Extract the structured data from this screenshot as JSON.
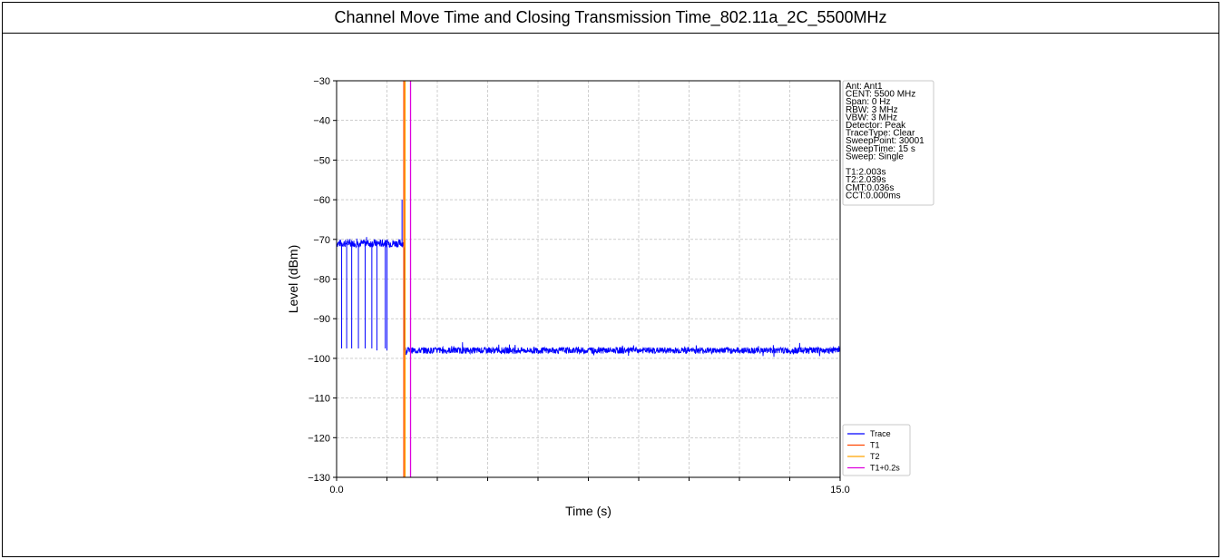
{
  "chart_data": {
    "type": "line",
    "title": "Channel Move Time and Closing Transmission Time_802.11a_2C_5500MHz",
    "xlabel": "Time (s)",
    "ylabel": "Level (dBm)",
    "xlim": [
      0,
      15
    ],
    "ylim": [
      -130,
      -30
    ],
    "x_ticks": [
      "0.0",
      "15.0"
    ],
    "y_ticks": [
      "-30",
      "-40",
      "-50",
      "-60",
      "-70",
      "-80",
      "-90",
      "-100",
      "-110",
      "-120",
      "-130"
    ],
    "grid": true,
    "x_grid_divisions": 10,
    "info_lines": [
      "Ant: Ant1",
      "CENT: 5500 MHz",
      "Span: 0 Hz",
      "RBW: 3 MHz",
      "VBW: 3 MHz",
      "Detector: Peak",
      "TraceType: Clear",
      "SweepPoint: 30001",
      "SweepTime: 15 s",
      "Sweep: Single",
      "",
      "T1:2.003s",
      "T2:2.039s",
      "CMT:0.036s",
      "CCT:0.000ms"
    ],
    "legend_position": "lower-right",
    "series": [
      {
        "name": "Trace",
        "color": "#0000ff",
        "segments": [
          {
            "x_start": 0.0,
            "x_end": 2.003,
            "baseline": -71,
            "noise": 1.0
          },
          {
            "x_start": 2.04,
            "x_end": 15.0,
            "baseline": -98,
            "noise": 0.8
          }
        ],
        "spikes": [
          {
            "x": 0.15,
            "y": -97.5
          },
          {
            "x": 0.3,
            "y": -97.5
          },
          {
            "x": 0.45,
            "y": -97.5
          },
          {
            "x": 0.65,
            "y": -97.5
          },
          {
            "x": 0.85,
            "y": -97.5
          },
          {
            "x": 1.05,
            "y": -97.5
          },
          {
            "x": 1.2,
            "y": -98
          },
          {
            "x": 1.45,
            "y": -97.5
          },
          {
            "x": 1.5,
            "y": -98
          },
          {
            "x": 1.95,
            "y": -60
          }
        ],
        "transition": {
          "x": 2.02,
          "y_from": -72,
          "y_to": -98
        }
      },
      {
        "name": "T1",
        "color": "#ff4500",
        "x": 2.003
      },
      {
        "name": "T2",
        "color": "#ffa500",
        "x": 2.039
      },
      {
        "name": "T1+0.2s",
        "color": "#dd00dd",
        "x": 2.203
      }
    ]
  }
}
